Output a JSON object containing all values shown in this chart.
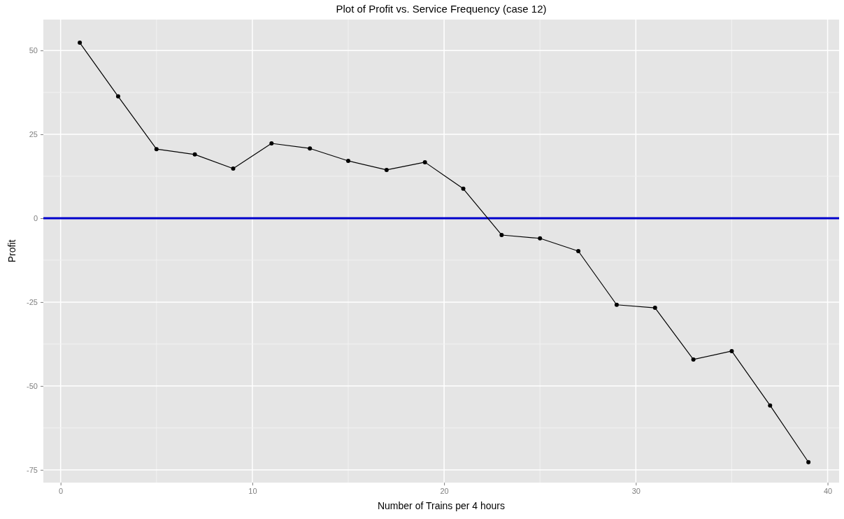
{
  "chart_data": {
    "type": "line",
    "title": "Plot of Profit vs. Service Frequency (case 12)",
    "xlabel": "Number of Trains per 4 hours",
    "ylabel": "Profit",
    "x": [
      1,
      3,
      5,
      7,
      9,
      11,
      13,
      15,
      17,
      19,
      21,
      23,
      25,
      27,
      29,
      31,
      33,
      35,
      37,
      39
    ],
    "series": [
      {
        "color": "#000000",
        "values": [
          52.3,
          36.3,
          20.6,
          19.0,
          14.8,
          22.3,
          20.8,
          17.1,
          14.4,
          16.7,
          8.8,
          -5.0,
          -6.0,
          -9.8,
          -25.8,
          -26.7,
          -42.1,
          -39.6,
          -55.8,
          -72.7
        ]
      }
    ],
    "xlim": [
      -0.9,
      40.6
    ],
    "ylim": [
      -78.8,
      59.2
    ],
    "xticks": [
      0,
      10,
      20,
      30,
      40
    ],
    "yticks": [
      -75,
      -50,
      -25,
      0,
      25,
      50
    ],
    "ref_lines": [
      {
        "axis": "y",
        "value": 0,
        "color": "#0000cc"
      }
    ],
    "grid": true,
    "marker": "circle",
    "line_style": "solid"
  }
}
